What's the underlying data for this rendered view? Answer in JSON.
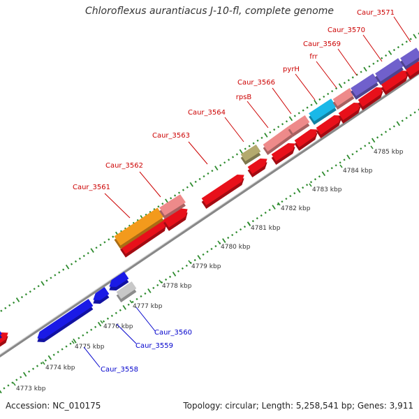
{
  "title": "Chloroflexus aurantiacus J-10-fl, complete genome",
  "footer": {
    "accession": "Accession: NC_010175",
    "summary": "Topology: circular; Length: 5,258,541 bp; Genes: 3,911"
  },
  "colors": {
    "forward_label": "#cc0000",
    "reverse_label": "#0000cc",
    "backbone": "#808080",
    "dots": "#2e8b2e",
    "cds_red": "#e8101a",
    "rna_pink": "#ee8a8a",
    "orange": "#f39a1c",
    "blue": "#1a1ae6",
    "gray": "#c8c8c8",
    "olive": "#b4aa6e",
    "cyan": "#1ab8e8",
    "purple": "#7060cc"
  },
  "scale_ticks": [
    "4773 kbp",
    "4774 kbp",
    "4775 kbp",
    "4776 kbp",
    "4777 kbp",
    "4778 kbp",
    "4779 kbp",
    "4780 kbp",
    "4781 kbp",
    "4782 kbp",
    "4783 kbp",
    "4784 kbp",
    "4785 kbp"
  ],
  "forward_labels": [
    "Caur_3561",
    "Caur_3562",
    "Caur_3563",
    "Caur_3564",
    "rpsB",
    "Caur_3566",
    "pyrH",
    "frr",
    "Caur_3569",
    "Caur_3570",
    "Caur_3571"
  ],
  "reverse_labels": [
    "Caur_3558",
    "Caur_3559",
    "Caur_3560"
  ]
}
